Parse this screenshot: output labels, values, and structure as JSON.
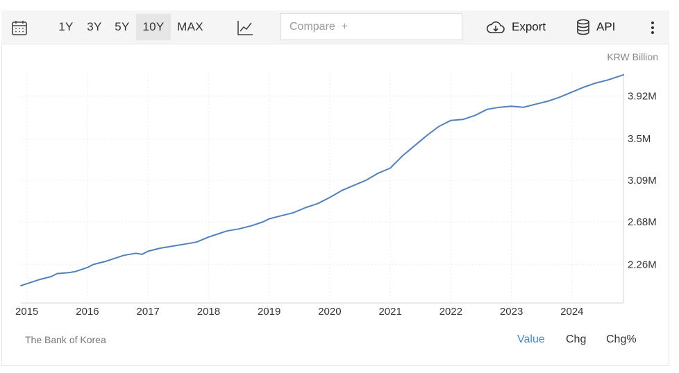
{
  "toolbar": {
    "calendar_icon": "calendar-icon",
    "ranges": [
      "1Y",
      "3Y",
      "5Y",
      "10Y",
      "MAX"
    ],
    "active_range": "10Y",
    "chart_type_icon": "line-chart-icon",
    "compare_placeholder": "Compare  +",
    "export_label": "Export",
    "export_icon": "cloud-download-icon",
    "api_label": "API",
    "api_icon": "database-icon",
    "more_icon": "vertical-dots-icon"
  },
  "footer": {
    "source": "The Bank of Korea",
    "views": [
      "Value",
      "Chg",
      "Chg%"
    ],
    "active_view": "Value"
  },
  "colors": {
    "line": "#4f81bd",
    "active_view": "#3d8ed9"
  },
  "chart_data": {
    "type": "line",
    "unit_label": "KRW Billion",
    "x_ticks": [
      "2015",
      "2016",
      "2017",
      "2018",
      "2019",
      "2020",
      "2021",
      "2022",
      "2023",
      "2024"
    ],
    "y_ticks": [
      "2.26M",
      "2.68M",
      "3.09M",
      "3.5M",
      "3.92M"
    ],
    "y_tick_values": [
      2.26,
      2.68,
      3.09,
      3.5,
      3.92
    ],
    "xlim": [
      2014.9,
      2024.85
    ],
    "ylim": [
      1.88,
      4.15
    ],
    "grid": true,
    "y_axis_position": "right",
    "series": [
      {
        "values_unit": "M KRW Billion",
        "x": [
          2014.9,
          2015.0,
          2015.2,
          2015.4,
          2015.5,
          2015.7,
          2015.8,
          2016.0,
          2016.1,
          2016.3,
          2016.5,
          2016.6,
          2016.8,
          2016.9,
          2017.0,
          2017.2,
          2017.4,
          2017.6,
          2017.8,
          2018.0,
          2018.1,
          2018.3,
          2018.5,
          2018.7,
          2018.9,
          2019.0,
          2019.2,
          2019.4,
          2019.6,
          2019.8,
          2020.0,
          2020.2,
          2020.4,
          2020.6,
          2020.8,
          2021.0,
          2021.2,
          2021.4,
          2021.6,
          2021.8,
          2022.0,
          2022.2,
          2022.4,
          2022.6,
          2022.8,
          2023.0,
          2023.2,
          2023.4,
          2023.6,
          2023.8,
          2024.0,
          2024.2,
          2024.4,
          2024.6,
          2024.85
        ],
        "y": [
          2.05,
          2.07,
          2.11,
          2.14,
          2.17,
          2.18,
          2.19,
          2.23,
          2.26,
          2.29,
          2.33,
          2.35,
          2.37,
          2.36,
          2.39,
          2.42,
          2.44,
          2.46,
          2.48,
          2.53,
          2.55,
          2.59,
          2.61,
          2.64,
          2.68,
          2.71,
          2.74,
          2.77,
          2.82,
          2.86,
          2.92,
          2.99,
          3.04,
          3.09,
          3.16,
          3.21,
          3.33,
          3.43,
          3.53,
          3.62,
          3.68,
          3.69,
          3.73,
          3.79,
          3.81,
          3.82,
          3.81,
          3.84,
          3.87,
          3.91,
          3.96,
          4.01,
          4.05,
          4.08,
          4.13
        ]
      }
    ]
  }
}
